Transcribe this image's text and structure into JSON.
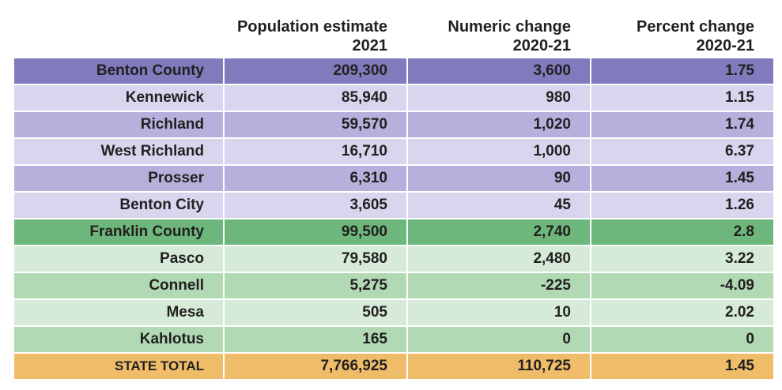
{
  "table": {
    "headers": [
      [
        "Population estimate",
        "2021"
      ],
      [
        "Numeric change",
        "2020-21"
      ],
      [
        "Percent change",
        "2020-21"
      ]
    ],
    "rows": [
      [
        "Benton County",
        "209,300",
        "3,600",
        "1.75"
      ],
      [
        "Kennewick",
        "85,940",
        "980",
        "1.15"
      ],
      [
        "Richland",
        "59,570",
        "1,020",
        "1.74"
      ],
      [
        "West Richland",
        "16,710",
        "1,000",
        "6.37"
      ],
      [
        "Prosser",
        "6,310",
        "90",
        "1.45"
      ],
      [
        "Benton City",
        "3,605",
        "45",
        "1.26"
      ],
      [
        "Franklin County",
        "99,500",
        "2,740",
        "2.8"
      ],
      [
        "Pasco",
        "79,580",
        "2,480",
        "3.22"
      ],
      [
        "Connell",
        "5,275",
        "-225",
        "-4.09"
      ],
      [
        "Mesa",
        "505",
        "10",
        "2.02"
      ],
      [
        "Kahlotus",
        "165",
        "0",
        "0"
      ],
      [
        "STATE TOTAL",
        "7,766,925",
        "110,725",
        "1.45"
      ]
    ]
  }
}
